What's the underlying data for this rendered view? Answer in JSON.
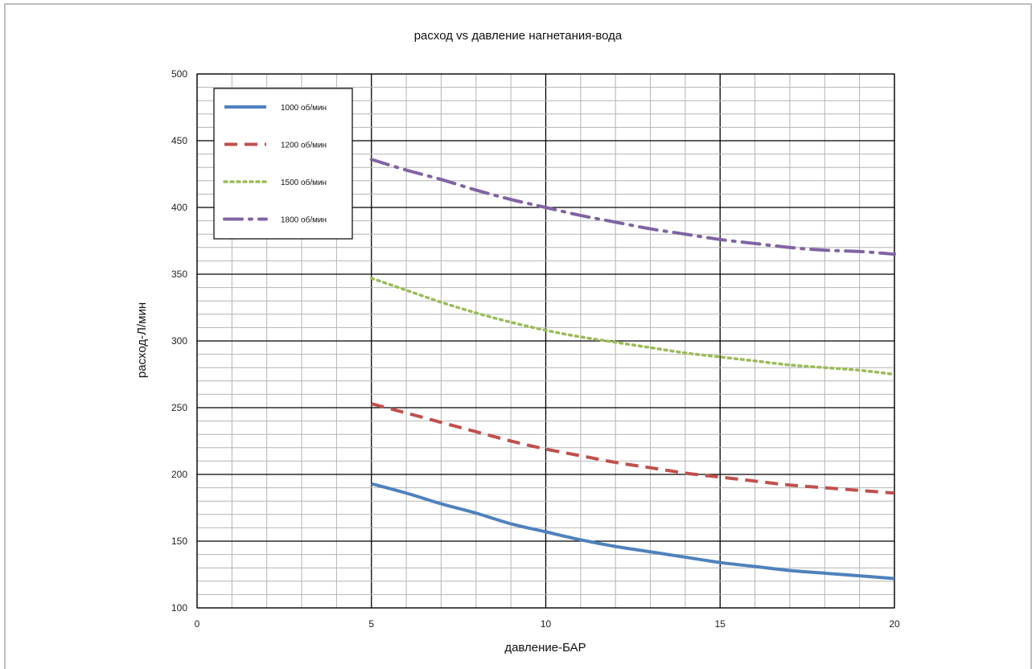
{
  "chart_data": {
    "type": "line",
    "title": "расход vs давление нагнетания-вода",
    "xlabel": "давление-БАР",
    "ylabel": "расход-Л/мин",
    "xlim": [
      0,
      20
    ],
    "ylim": [
      100,
      500
    ],
    "xticks": [
      "0",
      "5",
      "10",
      "15",
      "20"
    ],
    "yticks": [
      "100",
      "150",
      "200",
      "250",
      "300",
      "350",
      "400",
      "450",
      "500"
    ],
    "grid": true,
    "legend_position": "top-left",
    "series": [
      {
        "name": "1000 об/мин",
        "color": "#4f81bd",
        "style": "solid",
        "x": [
          5,
          6,
          7,
          8,
          9,
          10,
          11,
          12,
          13,
          14,
          15,
          16,
          17,
          18,
          19,
          20
        ],
        "y": [
          193,
          186,
          178,
          171,
          163,
          157,
          151,
          146,
          142,
          138,
          134,
          131,
          128,
          126,
          124,
          122
        ]
      },
      {
        "name": "1200 об/мин",
        "color": "#c0504d",
        "style": "dashed",
        "x": [
          5,
          6,
          7,
          8,
          9,
          10,
          11,
          12,
          13,
          14,
          15,
          16,
          17,
          18,
          19,
          20
        ],
        "y": [
          253,
          246,
          239,
          232,
          225,
          219,
          214,
          209,
          205,
          201,
          198,
          195,
          192,
          190,
          188,
          186
        ]
      },
      {
        "name": "1500 об/мин",
        "color": "#9bbb59",
        "style": "dotted",
        "x": [
          5,
          6,
          7,
          8,
          9,
          10,
          11,
          12,
          13,
          14,
          15,
          16,
          17,
          18,
          19,
          20
        ],
        "y": [
          347,
          338,
          329,
          321,
          314,
          308,
          303,
          299,
          295,
          291,
          288,
          285,
          282,
          280,
          278,
          275
        ]
      },
      {
        "name": "1800 об/мин",
        "color": "#8064a2",
        "style": "dashdot",
        "x": [
          5,
          6,
          7,
          8,
          9,
          10,
          11,
          12,
          13,
          14,
          15,
          16,
          17,
          18,
          19,
          20
        ],
        "y": [
          436,
          428,
          421,
          413,
          406,
          400,
          394,
          389,
          384,
          380,
          376,
          373,
          370,
          368,
          367,
          365
        ]
      }
    ]
  }
}
